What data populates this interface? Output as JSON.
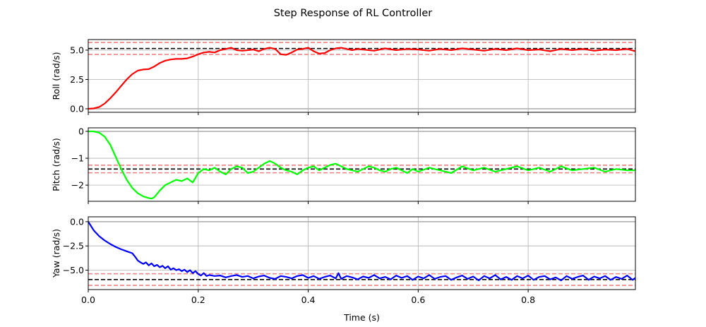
{
  "figure": {
    "title": "Step Response of RL Controller"
  },
  "chart_data": [
    {
      "type": "line",
      "ylabel": "Roll (rad/s)",
      "xlabel": "",
      "xlim": [
        0,
        0.995
      ],
      "ylim": [
        -0.3,
        5.9
      ],
      "yticks": [
        0.0,
        2.5,
        5.0
      ],
      "ytick_labels": [
        "0.0",
        "2.5",
        "5.0"
      ],
      "xticks": [
        0,
        0.2,
        0.4,
        0.6,
        0.8
      ],
      "xtick_labels": [],
      "grid": true,
      "reference_lines": [
        {
          "y": 5.14,
          "color": "#000000",
          "style": "dashed"
        },
        {
          "y": 5.65,
          "color": "#f08080",
          "style": "dashed"
        },
        {
          "y": 4.63,
          "color": "#f08080",
          "style": "dashed"
        },
        {
          "y": 0.0,
          "color": "#aaaaaa",
          "style": "solid"
        }
      ],
      "series": [
        {
          "color": "#ff0000",
          "x": [
            0,
            0.01,
            0.02,
            0.03,
            0.04,
            0.05,
            0.06,
            0.07,
            0.08,
            0.09,
            0.1,
            0.11,
            0.12,
            0.13,
            0.14,
            0.15,
            0.16,
            0.17,
            0.18,
            0.19,
            0.2,
            0.21,
            0.22,
            0.23,
            0.24,
            0.25,
            0.26,
            0.27,
            0.28,
            0.29,
            0.3,
            0.31,
            0.32,
            0.33,
            0.34,
            0.35,
            0.36,
            0.37,
            0.38,
            0.39,
            0.4,
            0.41,
            0.42,
            0.43,
            0.44,
            0.45,
            0.46,
            0.47,
            0.48,
            0.49,
            0.5,
            0.52,
            0.54,
            0.56,
            0.58,
            0.6,
            0.62,
            0.64,
            0.66,
            0.68,
            0.7,
            0.72,
            0.74,
            0.76,
            0.78,
            0.8,
            0.82,
            0.84,
            0.86,
            0.88,
            0.9,
            0.92,
            0.94,
            0.96,
            0.98,
            0.995
          ],
          "y": [
            0,
            0.03,
            0.15,
            0.45,
            0.9,
            1.4,
            1.95,
            2.5,
            2.95,
            3.25,
            3.35,
            3.38,
            3.6,
            3.9,
            4.1,
            4.2,
            4.25,
            4.25,
            4.3,
            4.45,
            4.65,
            4.8,
            4.85,
            4.8,
            5.0,
            5.1,
            5.2,
            5.0,
            4.95,
            5.0,
            5.05,
            4.9,
            5.1,
            5.2,
            5.1,
            4.65,
            4.6,
            4.8,
            5.05,
            5.1,
            5.2,
            4.9,
            4.7,
            4.75,
            5.0,
            5.15,
            5.2,
            5.1,
            5.0,
            5.1,
            5.05,
            4.95,
            5.15,
            5.0,
            5.1,
            5.05,
            4.95,
            5.1,
            5.0,
            5.15,
            5.05,
            4.95,
            5.1,
            5.0,
            5.15,
            5.0,
            5.05,
            4.9,
            5.1,
            5.0,
            5.1,
            4.95,
            5.05,
            5.0,
            5.1,
            4.9
          ]
        }
      ]
    },
    {
      "type": "line",
      "ylabel": "Pitch (rad/s)",
      "xlabel": "",
      "xlim": [
        0,
        0.995
      ],
      "ylim": [
        -2.6,
        0.13
      ],
      "yticks": [
        0,
        -1,
        -2
      ],
      "ytick_labels": [
        "0",
        "−1",
        "−2"
      ],
      "xticks": [
        0,
        0.2,
        0.4,
        0.6,
        0.8
      ],
      "xtick_labels": [],
      "grid": true,
      "reference_lines": [
        {
          "y": -1.4,
          "color": "#000000",
          "style": "dashed"
        },
        {
          "y": -1.26,
          "color": "#f08080",
          "style": "dashed"
        },
        {
          "y": -1.54,
          "color": "#f08080",
          "style": "dashed"
        },
        {
          "y": 0.0,
          "color": "#aaaaaa",
          "style": "solid"
        }
      ],
      "series": [
        {
          "color": "#00ff00",
          "x": [
            0,
            0.01,
            0.02,
            0.03,
            0.04,
            0.05,
            0.06,
            0.07,
            0.08,
            0.09,
            0.1,
            0.11,
            0.115,
            0.12,
            0.13,
            0.14,
            0.15,
            0.16,
            0.17,
            0.18,
            0.19,
            0.2,
            0.21,
            0.22,
            0.23,
            0.24,
            0.25,
            0.26,
            0.27,
            0.28,
            0.29,
            0.3,
            0.31,
            0.32,
            0.33,
            0.335,
            0.34,
            0.35,
            0.36,
            0.37,
            0.38,
            0.39,
            0.4,
            0.41,
            0.42,
            0.43,
            0.44,
            0.45,
            0.46,
            0.47,
            0.48,
            0.49,
            0.5,
            0.51,
            0.52,
            0.53,
            0.54,
            0.55,
            0.56,
            0.57,
            0.58,
            0.59,
            0.6,
            0.62,
            0.64,
            0.66,
            0.68,
            0.7,
            0.72,
            0.74,
            0.76,
            0.78,
            0.8,
            0.82,
            0.84,
            0.86,
            0.88,
            0.9,
            0.92,
            0.94,
            0.96,
            0.98,
            0.995
          ],
          "y": [
            0,
            0,
            -0.05,
            -0.2,
            -0.5,
            -0.95,
            -1.4,
            -1.8,
            -2.1,
            -2.3,
            -2.42,
            -2.48,
            -2.5,
            -2.45,
            -2.2,
            -2.0,
            -1.9,
            -1.8,
            -1.85,
            -1.75,
            -1.9,
            -1.55,
            -1.4,
            -1.45,
            -1.35,
            -1.5,
            -1.6,
            -1.4,
            -1.3,
            -1.35,
            -1.55,
            -1.5,
            -1.35,
            -1.2,
            -1.1,
            -1.15,
            -1.2,
            -1.35,
            -1.45,
            -1.5,
            -1.6,
            -1.45,
            -1.35,
            -1.3,
            -1.45,
            -1.35,
            -1.25,
            -1.2,
            -1.3,
            -1.4,
            -1.45,
            -1.5,
            -1.4,
            -1.3,
            -1.35,
            -1.45,
            -1.5,
            -1.4,
            -1.35,
            -1.45,
            -1.55,
            -1.4,
            -1.5,
            -1.35,
            -1.45,
            -1.55,
            -1.3,
            -1.45,
            -1.35,
            -1.5,
            -1.4,
            -1.3,
            -1.45,
            -1.35,
            -1.5,
            -1.3,
            -1.45,
            -1.4,
            -1.35,
            -1.5,
            -1.4,
            -1.45,
            -1.45
          ]
        }
      ]
    },
    {
      "type": "line",
      "ylabel": "Yaw (rad/s)",
      "xlabel": "Time (s)",
      "xlim": [
        0,
        0.995
      ],
      "ylim": [
        -7.0,
        0.5
      ],
      "yticks": [
        0.0,
        -2.5,
        -5.0
      ],
      "ytick_labels": [
        "0.0",
        "−2.5",
        "−5.0"
      ],
      "xticks": [
        0,
        0.2,
        0.4,
        0.6,
        0.8
      ],
      "xtick_labels": [
        "0.0",
        "0.2",
        "0.4",
        "0.6",
        "0.8"
      ],
      "grid": true,
      "reference_lines": [
        {
          "y": -5.97,
          "color": "#000000",
          "style": "dashed"
        },
        {
          "y": -5.37,
          "color": "#f08080",
          "style": "dashed"
        },
        {
          "y": -6.57,
          "color": "#f08080",
          "style": "dashed"
        },
        {
          "y": 0.0,
          "color": "#aaaaaa",
          "style": "solid"
        }
      ],
      "series": [
        {
          "color": "#0000ff",
          "x": [
            0,
            0.01,
            0.02,
            0.03,
            0.04,
            0.05,
            0.06,
            0.07,
            0.08,
            0.085,
            0.09,
            0.095,
            0.1,
            0.105,
            0.11,
            0.115,
            0.12,
            0.125,
            0.13,
            0.135,
            0.14,
            0.145,
            0.15,
            0.155,
            0.16,
            0.165,
            0.17,
            0.175,
            0.18,
            0.185,
            0.19,
            0.195,
            0.2,
            0.205,
            0.21,
            0.215,
            0.22,
            0.23,
            0.24,
            0.25,
            0.26,
            0.27,
            0.28,
            0.29,
            0.3,
            0.31,
            0.32,
            0.33,
            0.34,
            0.35,
            0.36,
            0.37,
            0.38,
            0.39,
            0.4,
            0.41,
            0.42,
            0.43,
            0.44,
            0.45,
            0.455,
            0.46,
            0.47,
            0.48,
            0.49,
            0.5,
            0.51,
            0.52,
            0.53,
            0.54,
            0.55,
            0.56,
            0.57,
            0.58,
            0.59,
            0.6,
            0.61,
            0.62,
            0.63,
            0.64,
            0.65,
            0.66,
            0.67,
            0.68,
            0.69,
            0.7,
            0.71,
            0.72,
            0.73,
            0.74,
            0.75,
            0.76,
            0.77,
            0.78,
            0.79,
            0.8,
            0.81,
            0.82,
            0.83,
            0.84,
            0.85,
            0.86,
            0.87,
            0.88,
            0.89,
            0.9,
            0.91,
            0.92,
            0.93,
            0.94,
            0.95,
            0.96,
            0.97,
            0.98,
            0.99,
            0.995
          ],
          "y": [
            0,
            -0.9,
            -1.5,
            -1.95,
            -2.3,
            -2.6,
            -2.85,
            -3.05,
            -3.25,
            -3.6,
            -4.0,
            -4.2,
            -4.35,
            -4.2,
            -4.5,
            -4.3,
            -4.6,
            -4.45,
            -4.7,
            -4.55,
            -4.8,
            -4.6,
            -4.95,
            -4.8,
            -5.0,
            -4.9,
            -5.1,
            -4.95,
            -5.2,
            -5.0,
            -5.3,
            -5.1,
            -5.4,
            -5.55,
            -5.3,
            -5.6,
            -5.5,
            -5.6,
            -5.55,
            -5.75,
            -5.6,
            -5.5,
            -5.7,
            -5.6,
            -5.85,
            -5.65,
            -5.55,
            -5.8,
            -5.9,
            -5.6,
            -5.7,
            -5.85,
            -5.6,
            -5.5,
            -5.8,
            -5.6,
            -5.9,
            -5.7,
            -5.55,
            -5.85,
            -5.3,
            -5.9,
            -5.6,
            -5.75,
            -5.95,
            -5.65,
            -5.8,
            -5.5,
            -5.85,
            -5.7,
            -5.95,
            -5.55,
            -5.8,
            -5.6,
            -6.0,
            -5.65,
            -5.85,
            -5.5,
            -5.9,
            -5.7,
            -5.6,
            -6.0,
            -5.75,
            -5.55,
            -5.9,
            -5.65,
            -6.05,
            -5.6,
            -5.85,
            -5.5,
            -5.95,
            -5.7,
            -6.0,
            -5.6,
            -5.85,
            -5.55,
            -6.0,
            -5.7,
            -5.6,
            -5.95,
            -5.75,
            -6.05,
            -5.6,
            -5.9,
            -5.7,
            -5.55,
            -6.0,
            -5.65,
            -5.85,
            -5.6,
            -6.0,
            -5.7,
            -5.9,
            -5.55,
            -6.0,
            -5.8
          ]
        }
      ]
    }
  ]
}
